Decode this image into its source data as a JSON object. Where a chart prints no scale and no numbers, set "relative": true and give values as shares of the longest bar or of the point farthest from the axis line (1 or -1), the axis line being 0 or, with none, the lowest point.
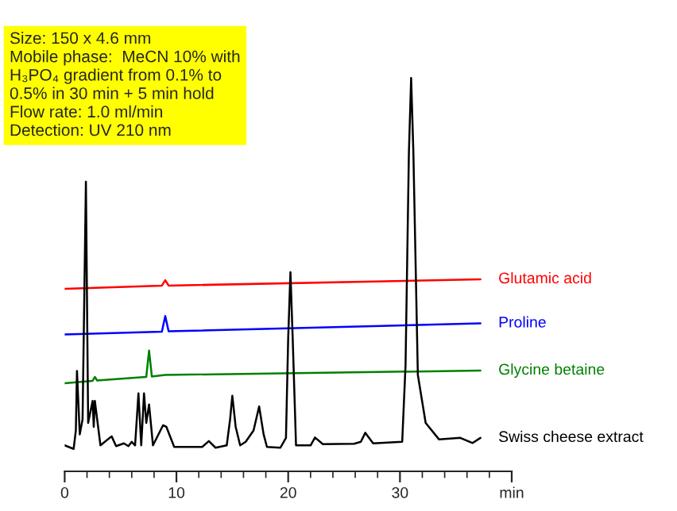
{
  "chart_data": {
    "type": "line",
    "relative": true,
    "legend": false,
    "grid": false,
    "annotations": [
      "Size: 150 x 4.6 mm\nMobile phase:  MeCN 10% with\nH₃PO₄ gradient from 0.1% to\n0.5% in 30 min + 5 min hold\nFlow rate: 1.0 ml/min\nDetection: UV 210 nm"
    ],
    "xlim": [
      0,
      40
    ],
    "xticks": [
      0,
      10,
      20,
      30,
      {
        "value": 40,
        "label": "min"
      }
    ],
    "series": [
      {
        "name": "Glutamic acid",
        "color": "#ff0000",
        "x": [
          0,
          8.7,
          9.0,
          9.3,
          37.2
        ],
        "values": [
          0.464,
          0.472,
          0.486,
          0.472,
          0.488
        ]
      },
      {
        "name": "Proline",
        "color": "#0000ff",
        "x": [
          0,
          8.7,
          9.0,
          9.3,
          37.2
        ],
        "values": [
          0.348,
          0.355,
          0.395,
          0.356,
          0.376
        ]
      },
      {
        "name": "Glycine betaine",
        "color": "#008000",
        "x": [
          0,
          2.5,
          2.7,
          2.9,
          7.3,
          7.55,
          7.8,
          9.0,
          37.2
        ],
        "values": [
          0.224,
          0.23,
          0.24,
          0.231,
          0.24,
          0.307,
          0.241,
          0.245,
          0.256
        ]
      },
      {
        "name": "Swiss cheese extract",
        "color": "#000000",
        "x": [
          0,
          0.8,
          1.0,
          1.1,
          1.35,
          1.6,
          1.9,
          2.1,
          2.5,
          2.6,
          2.7,
          3.2,
          4.2,
          4.6,
          5.3,
          5.7,
          6.0,
          6.3,
          6.6,
          6.85,
          7.1,
          7.3,
          7.55,
          7.9,
          8.8,
          9.1,
          9.8,
          12.3,
          12.9,
          13.5,
          14.5,
          14.8,
          15.0,
          15.3,
          15.7,
          16.2,
          16.9,
          17.4,
          17.8,
          18.1,
          19.3,
          19.8,
          20.0,
          20.2,
          20.4,
          20.7,
          22.0,
          22.4,
          23.1,
          25.9,
          26.5,
          26.9,
          27.6,
          30.2,
          30.5,
          30.8,
          31.0,
          31.2,
          31.6,
          32.3,
          33.5,
          35.4,
          36.5,
          37.2
        ],
        "values": [
          0.066,
          0.057,
          0.104,
          0.255,
          0.094,
          0.132,
          0.736,
          0.123,
          0.179,
          0.113,
          0.179,
          0.066,
          0.089,
          0.064,
          0.071,
          0.064,
          0.075,
          0.066,
          0.198,
          0.066,
          0.198,
          0.123,
          0.17,
          0.066,
          0.117,
          0.113,
          0.062,
          0.062,
          0.077,
          0.06,
          0.066,
          0.132,
          0.192,
          0.113,
          0.066,
          0.075,
          0.104,
          0.165,
          0.094,
          0.062,
          0.06,
          0.085,
          0.34,
          0.506,
          0.34,
          0.066,
          0.066,
          0.086,
          0.069,
          0.07,
          0.075,
          0.098,
          0.071,
          0.075,
          0.27,
          0.811,
          1.0,
          0.811,
          0.245,
          0.123,
          0.081,
          0.085,
          0.072,
          0.085
        ]
      }
    ]
  }
}
